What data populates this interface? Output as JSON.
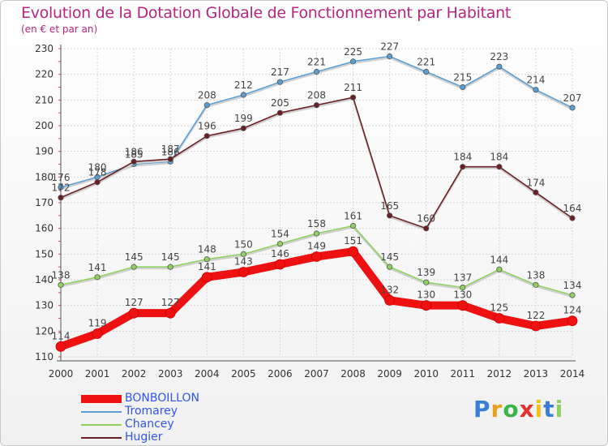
{
  "chart_data": {
    "type": "line",
    "title": "Evolution de la Dotation Globale de Fonctionnement par Habitant",
    "subtitle": "(en € et par an)",
    "x": [
      2000,
      2001,
      2002,
      2003,
      2004,
      2005,
      2006,
      2007,
      2008,
      2009,
      2010,
      2011,
      2012,
      2013,
      2014
    ],
    "ylim": [
      110,
      230
    ],
    "yticks": [
      110,
      120,
      130,
      140,
      150,
      160,
      170,
      180,
      190,
      200,
      210,
      220,
      230
    ],
    "grid": true,
    "legend_position": "bottom-left",
    "series": [
      {
        "name": "Tromarey",
        "color": "#5a9fd4",
        "values": [
          176,
          180,
          185,
          186,
          208,
          212,
          217,
          221,
          225,
          227,
          221,
          215,
          223,
          214,
          207
        ]
      },
      {
        "name": "Hugier",
        "color": "#6b1f24",
        "values": [
          172,
          178,
          186,
          187,
          196,
          199,
          205,
          208,
          211,
          165,
          160,
          184,
          184,
          174,
          164
        ]
      },
      {
        "name": "Chancey",
        "color": "#8ed15f",
        "values": [
          138,
          141,
          145,
          145,
          148,
          150,
          154,
          158,
          161,
          145,
          139,
          137,
          144,
          138,
          134
        ]
      },
      {
        "name": "BONBOILLON",
        "color": "#ee1111",
        "values": [
          114,
          119,
          127,
          127,
          141,
          143,
          146,
          149,
          151,
          132,
          130,
          130,
          125,
          122,
          124
        ]
      }
    ]
  },
  "legend": [
    {
      "name": "BONBOILLON",
      "color": "#ee1111",
      "text_color": "#3355ee"
    },
    {
      "name": "Tromarey",
      "color": "#5a9fd4",
      "text_color": "#3355ee"
    },
    {
      "name": "Chancey",
      "color": "#8ed15f",
      "text_color": "#3355ee"
    },
    {
      "name": "Hugier",
      "color": "#6b1f24",
      "text_color": "#3355ee"
    }
  ],
  "logo": {
    "text": "Proxiti",
    "letters": [
      "P",
      "r",
      "o",
      "x",
      "i",
      "t",
      "i"
    ],
    "colors": [
      "#3a7fd5",
      "#e8a21c",
      "#3ab54a",
      "#e4312d",
      "#f2c21b",
      "#3a7fd5",
      "#8ed15f"
    ]
  }
}
